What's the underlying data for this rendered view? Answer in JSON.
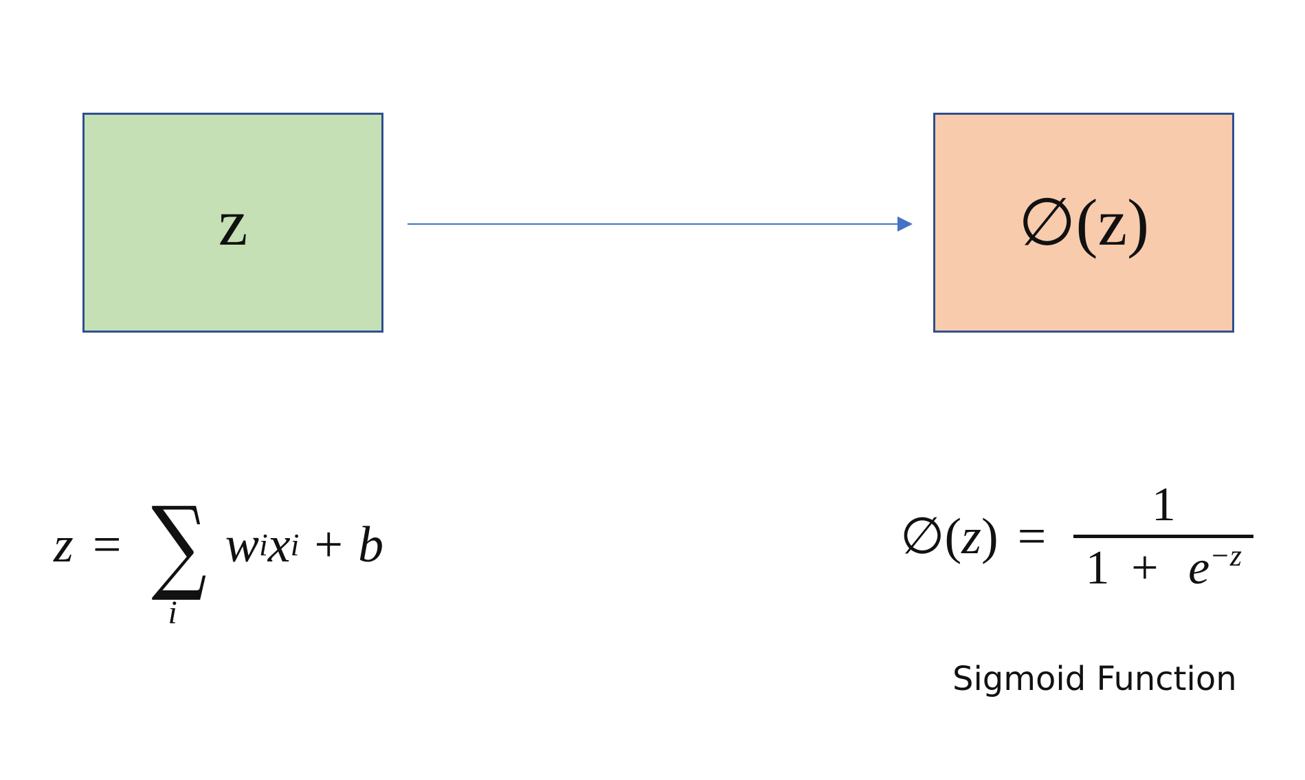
{
  "diagram": {
    "input_node": {
      "label": "z",
      "color": "#c5e0b4"
    },
    "output_node": {
      "label": "∅(z)",
      "color": "#f8cbad"
    },
    "edge": {
      "from": "input_node",
      "to": "output_node",
      "color": "#4472c4"
    },
    "border_color": "#2f4f8f"
  },
  "formula_z": {
    "lhs": "z",
    "equals": "=",
    "sum_symbol": "∑",
    "sum_index": "i",
    "w": "w",
    "w_sub": "i",
    "x": "x",
    "x_sub": "i",
    "plus": "+",
    "b": "b"
  },
  "formula_phi": {
    "lhs_phi": "∅",
    "lhs_open": "(",
    "lhs_var": "z",
    "lhs_close": ")",
    "equals": "=",
    "numerator": "1",
    "denominator_one": "1",
    "denominator_plus": "+",
    "denominator_e": "e",
    "denominator_exp": "−z"
  },
  "caption": "Sigmoid Function"
}
